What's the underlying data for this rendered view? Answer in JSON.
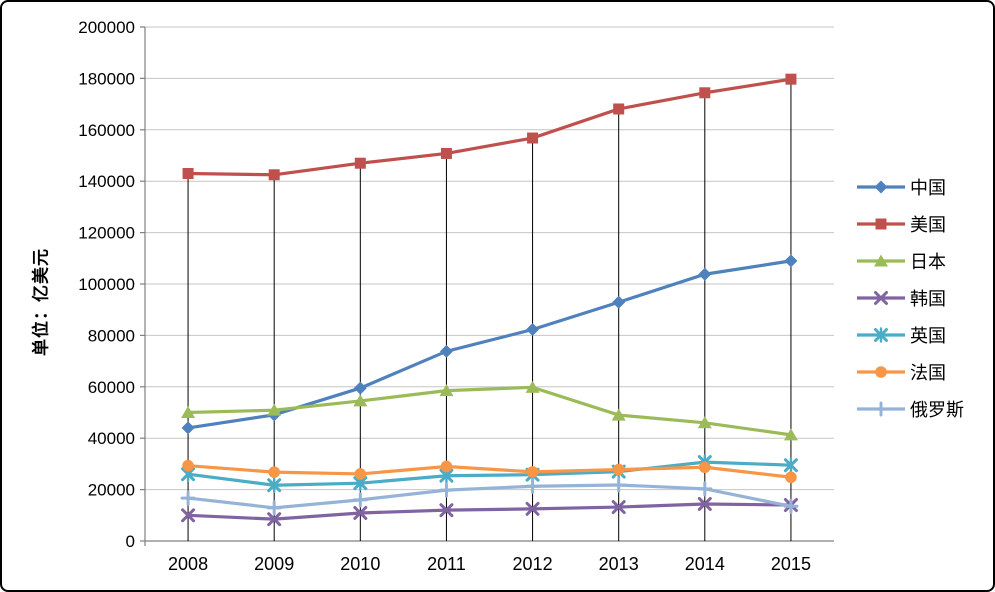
{
  "figure": {
    "y_axis_title": "单位：亿美元"
  },
  "chart_data": {
    "type": "line",
    "title": "",
    "xlabel": "",
    "ylabel": "单位：亿美元",
    "categories": [
      "2008",
      "2009",
      "2010",
      "2011",
      "2012",
      "2013",
      "2014",
      "2015"
    ],
    "series": [
      {
        "name": "中国",
        "color": "#4F81BD",
        "marker": "diamond",
        "values": [
          44000,
          49100,
          59500,
          73800,
          82300,
          92900,
          103800,
          109000
        ]
      },
      {
        "name": "美国",
        "color": "#C0504D",
        "marker": "square",
        "values": [
          143000,
          142500,
          147000,
          150800,
          156800,
          168100,
          174400,
          179700
        ]
      },
      {
        "name": "日本",
        "color": "#9BBB59",
        "marker": "triangle",
        "values": [
          50000,
          50900,
          54500,
          58500,
          59800,
          49000,
          46000,
          41300
        ]
      },
      {
        "name": "韩国",
        "color": "#8064A2",
        "marker": "x",
        "values": [
          10000,
          8500,
          10900,
          12000,
          12500,
          13200,
          14400,
          14000
        ]
      },
      {
        "name": "英国",
        "color": "#4BACC6",
        "marker": "star",
        "values": [
          26000,
          21700,
          22500,
          25400,
          25800,
          27000,
          30700,
          29500
        ]
      },
      {
        "name": "法国",
        "color": "#F79646",
        "marker": "circle",
        "values": [
          29300,
          26800,
          26100,
          29000,
          26900,
          27800,
          28700,
          24800
        ]
      },
      {
        "name": "俄罗斯",
        "color": "#95B3D7",
        "marker": "plus",
        "values": [
          16700,
          12900,
          16000,
          19800,
          21300,
          21800,
          20300,
          13500
        ]
      }
    ],
    "ylim": [
      0,
      200000
    ],
    "ytick_step": 20000,
    "grid": true,
    "gridline_color": "#C6C6C6",
    "axis_color": "#808080",
    "drop_lines": true,
    "drop_lines_follow_series": "美国",
    "drop_line_color": "#000000",
    "legend_position": "right"
  }
}
